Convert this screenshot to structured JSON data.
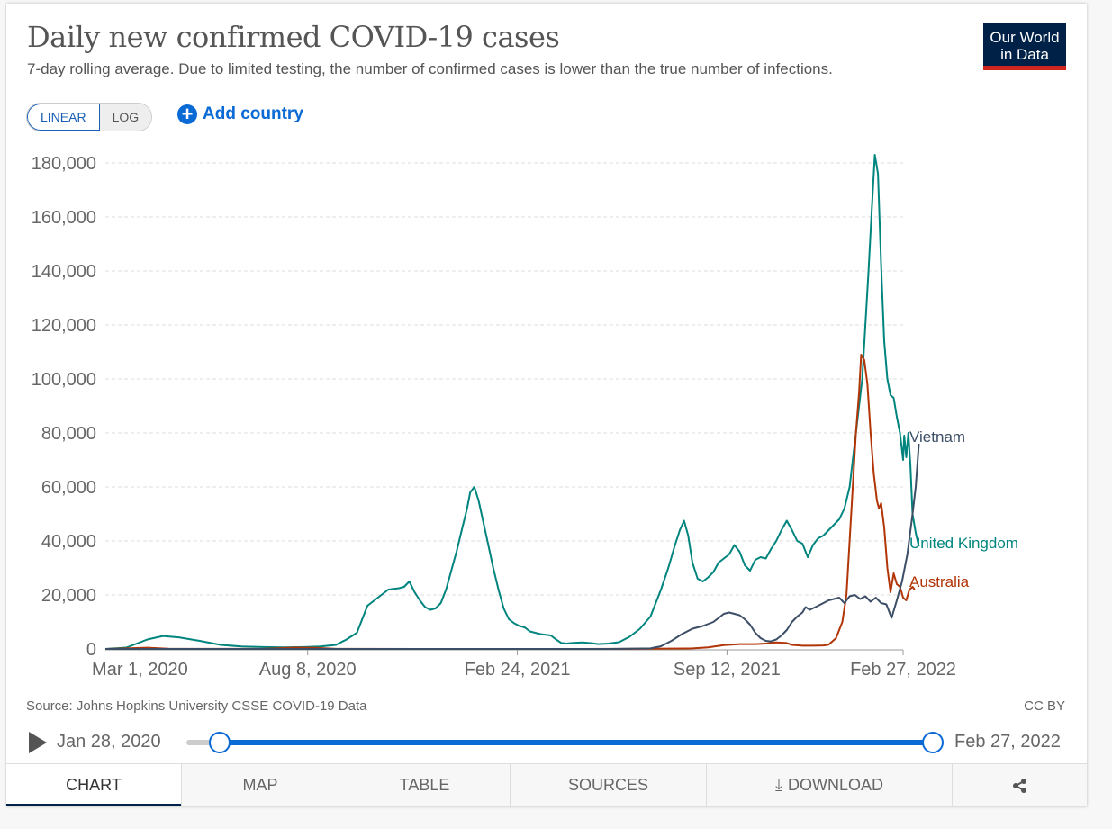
{
  "header": {
    "title": "Daily new confirmed COVID-19 cases",
    "subtitle": "7-day rolling average. Due to limited testing, the number of confirmed cases is lower than the true number of infections.",
    "logo_line1": "Our World",
    "logo_line2": "in Data"
  },
  "controls": {
    "linear_label": "LINEAR",
    "log_label": "LOG",
    "add_country_label": "Add country"
  },
  "footer": {
    "source": "Source: Johns Hopkins University CSSE COVID-19 Data",
    "license": "CC BY"
  },
  "timeline": {
    "start_label": "Jan 28, 2020",
    "end_label": "Feb 27, 2022"
  },
  "tabs": [
    {
      "label": "CHART"
    },
    {
      "label": "MAP"
    },
    {
      "label": "TABLE"
    },
    {
      "label": "SOURCES"
    },
    {
      "label": "DOWNLOAD"
    },
    {
      "label": ""
    }
  ],
  "colors": {
    "uk": "#00847e",
    "australia": "#b13507",
    "vietnam": "#3c4e66",
    "grid": "#dddddd",
    "axis_text": "#666666"
  },
  "chart_data": {
    "type": "line",
    "title": "Daily new confirmed COVID-19 cases",
    "xlabel": "",
    "ylabel": "",
    "x_unit": "days since Jan 28, 2020",
    "xlim": [
      0,
      761
    ],
    "ylim": [
      0,
      180000
    ],
    "y_ticks": [
      0,
      20000,
      40000,
      60000,
      80000,
      100000,
      120000,
      140000,
      160000,
      180000
    ],
    "y_tick_labels": [
      "0",
      "20,000",
      "40,000",
      "60,000",
      "80,000",
      "100,000",
      "120,000",
      "140,000",
      "160,000",
      "180,000"
    ],
    "x_ticks": [
      33,
      193,
      393,
      593,
      761
    ],
    "x_tick_labels": [
      "Mar 1, 2020",
      "Aug 8, 2020",
      "Feb 24, 2021",
      "Sep 12, 2021",
      "Feb 27, 2022"
    ],
    "grid": "horizontal",
    "series": [
      {
        "name": "United Kingdom",
        "color_key": "uk",
        "points": [
          [
            0,
            0
          ],
          [
            20,
            500
          ],
          [
            40,
            3500
          ],
          [
            55,
            4800
          ],
          [
            70,
            4300
          ],
          [
            90,
            3000
          ],
          [
            110,
            1500
          ],
          [
            130,
            900
          ],
          [
            150,
            700
          ],
          [
            170,
            600
          ],
          [
            190,
            700
          ],
          [
            205,
            900
          ],
          [
            220,
            1500
          ],
          [
            230,
            3500
          ],
          [
            240,
            6000
          ],
          [
            250,
            16000
          ],
          [
            260,
            19000
          ],
          [
            270,
            22000
          ],
          [
            280,
            22500
          ],
          [
            285,
            23000
          ],
          [
            290,
            25000
          ],
          [
            295,
            21000
          ],
          [
            300,
            18000
          ],
          [
            305,
            15500
          ],
          [
            310,
            14500
          ],
          [
            315,
            15000
          ],
          [
            320,
            17000
          ],
          [
            325,
            22000
          ],
          [
            330,
            29000
          ],
          [
            335,
            36000
          ],
          [
            340,
            44000
          ],
          [
            345,
            52000
          ],
          [
            348,
            58000
          ],
          [
            352,
            60000
          ],
          [
            356,
            55000
          ],
          [
            360,
            48000
          ],
          [
            365,
            39000
          ],
          [
            370,
            30000
          ],
          [
            375,
            22000
          ],
          [
            380,
            15000
          ],
          [
            385,
            11000
          ],
          [
            390,
            9500
          ],
          [
            395,
            8500
          ],
          [
            400,
            8000
          ],
          [
            405,
            6500
          ],
          [
            415,
            5500
          ],
          [
            425,
            5000
          ],
          [
            430,
            3500
          ],
          [
            435,
            2200
          ],
          [
            440,
            2000
          ],
          [
            445,
            2200
          ],
          [
            455,
            2400
          ],
          [
            465,
            2100
          ],
          [
            470,
            1800
          ],
          [
            480,
            2000
          ],
          [
            490,
            2500
          ],
          [
            500,
            4500
          ],
          [
            510,
            7500
          ],
          [
            520,
            12000
          ],
          [
            530,
            22000
          ],
          [
            537,
            30000
          ],
          [
            543,
            38000
          ],
          [
            548,
            44000
          ],
          [
            552,
            47500
          ],
          [
            556,
            42000
          ],
          [
            560,
            32000
          ],
          [
            565,
            26000
          ],
          [
            570,
            25000
          ],
          [
            575,
            26500
          ],
          [
            580,
            28500
          ],
          [
            585,
            32000
          ],
          [
            590,
            33500
          ],
          [
            595,
            35000
          ],
          [
            600,
            38500
          ],
          [
            605,
            36000
          ],
          [
            610,
            31000
          ],
          [
            615,
            29000
          ],
          [
            620,
            33000
          ],
          [
            625,
            34000
          ],
          [
            630,
            33500
          ],
          [
            635,
            37000
          ],
          [
            640,
            40000
          ],
          [
            645,
            44000
          ],
          [
            650,
            47500
          ],
          [
            655,
            44000
          ],
          [
            660,
            40000
          ],
          [
            665,
            39000
          ],
          [
            670,
            34000
          ],
          [
            675,
            38500
          ],
          [
            680,
            41000
          ],
          [
            685,
            42000
          ],
          [
            690,
            44000
          ],
          [
            695,
            46000
          ],
          [
            700,
            48000
          ],
          [
            705,
            52000
          ],
          [
            710,
            60000
          ],
          [
            713,
            70000
          ],
          [
            716,
            80000
          ],
          [
            719,
            90000
          ],
          [
            722,
            100000
          ],
          [
            725,
            120000
          ],
          [
            728,
            140000
          ],
          [
            731,
            162000
          ],
          [
            734,
            183000
          ],
          [
            737,
            176000
          ],
          [
            740,
            142000
          ],
          [
            743,
            114000
          ],
          [
            746,
            100000
          ],
          [
            749,
            94000
          ],
          [
            752,
            93000
          ],
          [
            755,
            86000
          ],
          [
            758,
            80000
          ],
          [
            761,
            70000
          ],
          [
            762,
            79000
          ],
          [
            764,
            71000
          ],
          [
            766,
            80000
          ],
          [
            768,
            68000
          ],
          [
            770,
            50000
          ],
          [
            773,
            43000
          ],
          [
            776,
            38000
          ]
        ]
      },
      {
        "name": "Australia",
        "color_key": "australia",
        "points": [
          [
            0,
            0
          ],
          [
            20,
            200
          ],
          [
            40,
            450
          ],
          [
            60,
            100
          ],
          [
            100,
            20
          ],
          [
            150,
            50
          ],
          [
            180,
            500
          ],
          [
            200,
            400
          ],
          [
            220,
            50
          ],
          [
            300,
            10
          ],
          [
            400,
            10
          ],
          [
            500,
            20
          ],
          [
            560,
            200
          ],
          [
            575,
            600
          ],
          [
            590,
            1400
          ],
          [
            605,
            1800
          ],
          [
            620,
            1800
          ],
          [
            630,
            2000
          ],
          [
            640,
            2400
          ],
          [
            650,
            2200
          ],
          [
            655,
            1500
          ],
          [
            665,
            1200
          ],
          [
            675,
            1200
          ],
          [
            685,
            1300
          ],
          [
            690,
            1600
          ],
          [
            697,
            4000
          ],
          [
            703,
            10000
          ],
          [
            707,
            20000
          ],
          [
            710,
            40000
          ],
          [
            713,
            60000
          ],
          [
            716,
            80000
          ],
          [
            719,
            95000
          ],
          [
            721,
            109000
          ],
          [
            724,
            107000
          ],
          [
            727,
            98000
          ],
          [
            730,
            80000
          ],
          [
            733,
            65000
          ],
          [
            736,
            55000
          ],
          [
            738,
            52000
          ],
          [
            740,
            54000
          ],
          [
            743,
            45000
          ],
          [
            746,
            30000
          ],
          [
            749,
            21000
          ],
          [
            752,
            28000
          ],
          [
            755,
            24000
          ],
          [
            758,
            23000
          ],
          [
            761,
            19000
          ],
          [
            764,
            18000
          ],
          [
            767,
            22000
          ],
          [
            770,
            23000
          ],
          [
            772,
            22000
          ]
        ]
      },
      {
        "name": "Vietnam",
        "color_key": "vietnam",
        "points": [
          [
            0,
            0
          ],
          [
            100,
            0
          ],
          [
            200,
            0
          ],
          [
            300,
            0
          ],
          [
            400,
            0
          ],
          [
            480,
            10
          ],
          [
            520,
            200
          ],
          [
            530,
            1000
          ],
          [
            540,
            3000
          ],
          [
            550,
            5500
          ],
          [
            560,
            7500
          ],
          [
            570,
            8500
          ],
          [
            580,
            10000
          ],
          [
            585,
            11500
          ],
          [
            590,
            13000
          ],
          [
            595,
            13500
          ],
          [
            600,
            13000
          ],
          [
            605,
            12500
          ],
          [
            610,
            11000
          ],
          [
            615,
            9000
          ],
          [
            620,
            6000
          ],
          [
            625,
            4000
          ],
          [
            630,
            3000
          ],
          [
            635,
            2800
          ],
          [
            640,
            3500
          ],
          [
            645,
            5000
          ],
          [
            650,
            7000
          ],
          [
            655,
            10000
          ],
          [
            660,
            12000
          ],
          [
            665,
            13500
          ],
          [
            668,
            15500
          ],
          [
            672,
            14500
          ],
          [
            680,
            16000
          ],
          [
            690,
            18000
          ],
          [
            700,
            19000
          ],
          [
            705,
            17000
          ],
          [
            710,
            19500
          ],
          [
            715,
            20000
          ],
          [
            720,
            18500
          ],
          [
            725,
            19500
          ],
          [
            730,
            17500
          ],
          [
            735,
            19000
          ],
          [
            740,
            17000
          ],
          [
            745,
            16500
          ],
          [
            750,
            11500
          ],
          [
            755,
            18000
          ],
          [
            760,
            25000
          ],
          [
            765,
            35000
          ],
          [
            770,
            50000
          ],
          [
            773,
            60000
          ],
          [
            776,
            76000
          ]
        ]
      }
    ]
  }
}
